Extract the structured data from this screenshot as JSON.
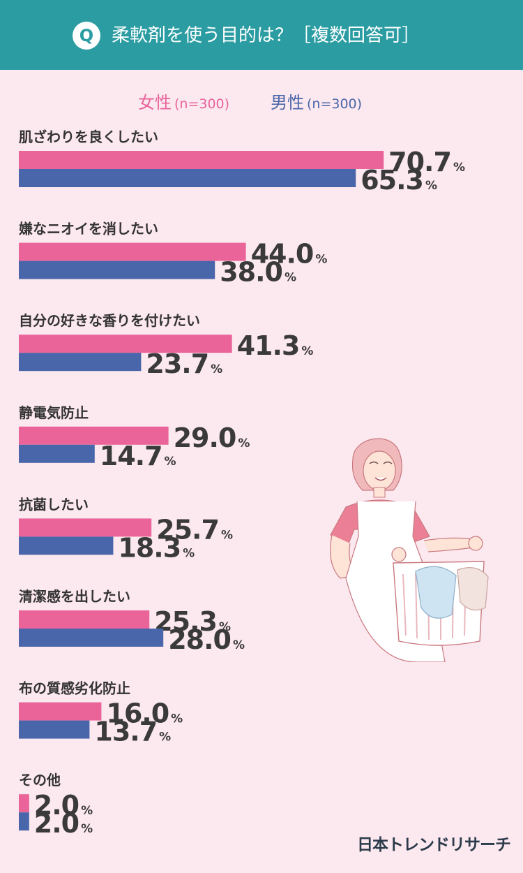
{
  "header": {
    "q_label": "Q",
    "title": "柔軟剤を使う目的は？［複数回答可］"
  },
  "legend": {
    "female_label": "女性",
    "female_n": "(n=300)",
    "male_label": "男性",
    "male_n": "(n=300)"
  },
  "brand": "日本トレンドリサーチ",
  "colors": {
    "female": "#ea6399",
    "male": "#4a66aa",
    "header": "#2a9ca2",
    "background": "#fce8ef"
  },
  "chart_data": {
    "type": "bar",
    "orientation": "horizontal",
    "categories": [
      "肌ざわりを良くしたい",
      "嫌なニオイを消したい",
      "自分の好きな香りを付けたい",
      "静電気防止",
      "抗菌したい",
      "清潔感を出したい",
      "布の質感劣化防止",
      "その他"
    ],
    "series": [
      {
        "name": "女性",
        "values": [
          70.7,
          44.0,
          41.3,
          29.0,
          25.7,
          25.3,
          16.0,
          2.0
        ]
      },
      {
        "name": "男性",
        "values": [
          65.3,
          38.0,
          23.7,
          14.7,
          18.3,
          28.0,
          13.7,
          2.0
        ]
      }
    ],
    "value_labels": {
      "女性": [
        "70.7",
        "44.0",
        "41.3",
        "29.0",
        "25.7",
        "25.3",
        "16.0",
        "2.0"
      ],
      "男性": [
        "65.3",
        "38.0",
        "23.7",
        "14.7",
        "18.3",
        "28.0",
        "13.7",
        "2.0"
      ]
    },
    "unit": "%"
  }
}
